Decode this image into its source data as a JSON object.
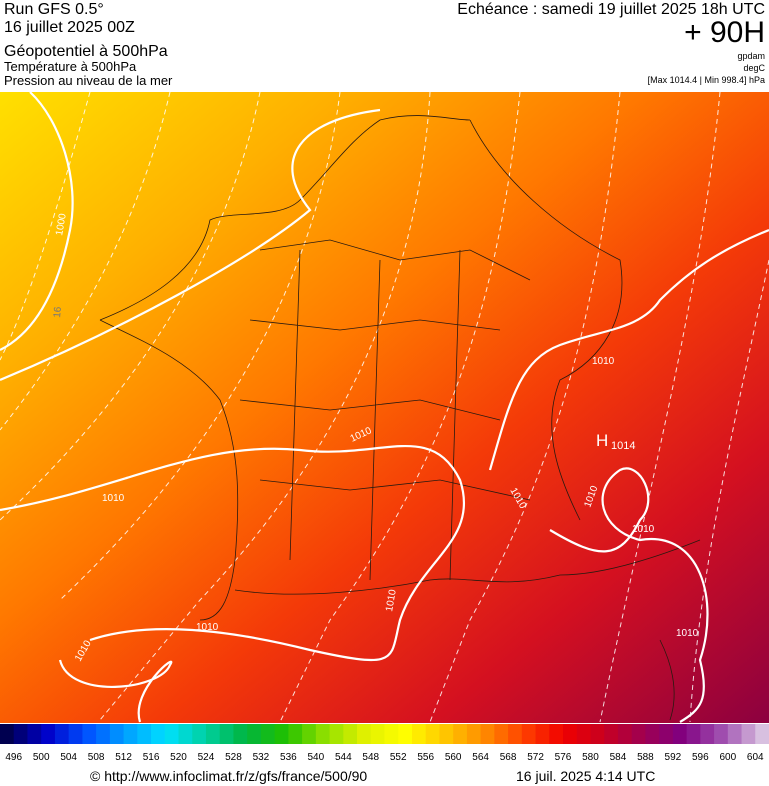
{
  "header": {
    "run": "Run GFS 0.5°",
    "run_date": "16 juillet 2025 00Z",
    "title": "Géopotentiel à 500hPa",
    "subtitle_1": "Température à 500hPa",
    "subtitle_2": "Pression au niveau de la mer",
    "valid": "Echéance : samedi 19 juillet 2025 18h UTC",
    "lead": "+ 90H",
    "unit_1": "gpdam",
    "unit_2": "degC",
    "range": "[Max 1014.4 | Min 998.4] hPa"
  },
  "map": {
    "labels": [
      "1000",
      "16",
      "1010",
      "1010",
      "1010",
      "1010",
      "1010",
      "1010",
      "1010",
      "1010",
      "1010",
      "1010"
    ],
    "high": "H",
    "high_value": "1014"
  },
  "colorbar": {
    "labels": [
      496,
      500,
      504,
      508,
      512,
      516,
      520,
      524,
      528,
      532,
      536,
      540,
      544,
      548,
      552,
      556,
      560,
      564,
      568,
      572,
      576,
      580,
      584,
      588,
      592,
      596,
      600,
      604
    ]
  },
  "footer": {
    "source": "© http://www.infoclimat.fr/z/gfs/france/500/90",
    "timestamp": "16 juil. 2025  4:14 UTC"
  }
}
